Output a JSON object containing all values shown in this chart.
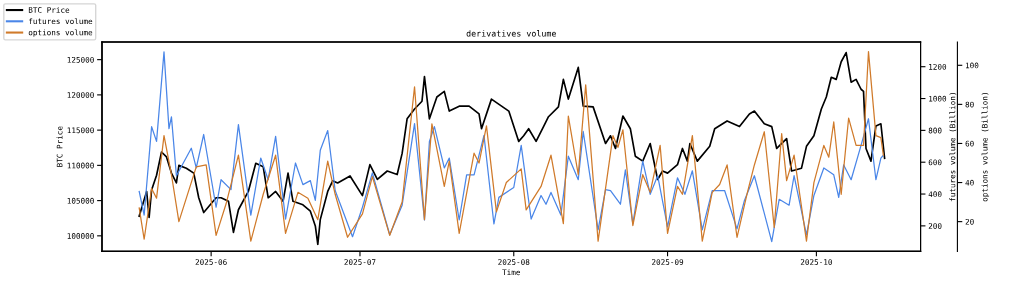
{
  "chart_data": {
    "type": "line",
    "title": "derivatives volume",
    "xlabel": "Time",
    "ylabel": "BTC Price",
    "y2label": "futures volume (Billion)",
    "y3label": "options volume (Billion)",
    "xlim": [
      "2025-05-10",
      "2025-10-22"
    ],
    "xticks": [
      {
        "value": "2025-06-01",
        "label": "2025-06"
      },
      {
        "value": "2025-07-01",
        "label": "2025-07"
      },
      {
        "value": "2025-08-01",
        "label": "2025-08"
      },
      {
        "value": "2025-09-01",
        "label": "2025-09"
      },
      {
        "value": "2025-10-01",
        "label": "2025-10"
      }
    ],
    "ylim": [
      97800,
      127500
    ],
    "yticks": [
      100000,
      105000,
      110000,
      115000,
      120000,
      125000
    ],
    "y2lim": [
      40,
      1355
    ],
    "y2ticks": [
      200,
      400,
      600,
      800,
      1000,
      1200
    ],
    "y3lim": [
      4.8,
      111.9
    ],
    "y3ticks": [
      20,
      40,
      60,
      80,
      100
    ],
    "legend": "top left",
    "series": [
      {
        "name": "BTC Price",
        "color": "#000000",
        "axis": "y",
        "x": [
          "2025-05-17T12:00",
          "2025-05-19",
          "2025-05-19T12:00",
          "2025-05-20",
          "2025-05-21",
          "2025-05-22",
          "2025-05-23",
          "2025-05-24",
          "2025-05-25",
          "2025-05-25T12:00",
          "2025-05-27",
          "2025-05-28T12:00",
          "2025-05-29T12:00",
          "2025-05-30T12:00",
          "2025-06-02",
          "2025-06-03",
          "2025-06-04T12:00",
          "2025-06-05T12:00",
          "2025-06-06T12:00",
          "2025-06-08T12:00",
          "2025-06-10",
          "2025-06-11T12:00",
          "2025-06-12T12:00",
          "2025-06-14",
          "2025-06-15T12:00",
          "2025-06-16T12:00",
          "2025-06-17T12:00",
          "2025-06-19T12:00",
          "2025-06-21",
          "2025-06-22",
          "2025-06-22T12:00",
          "2025-06-23",
          "2025-06-24T12:00",
          "2025-06-25T12:00",
          "2025-06-26T12:00",
          "2025-06-29",
          "2025-07-01T12:00",
          "2025-07-03",
          "2025-07-04T12:00",
          "2025-07-06T12:00",
          "2025-07-08T12:00",
          "2025-07-09T12:00",
          "2025-07-10T12:00",
          "2025-07-12",
          "2025-07-13T12:00",
          "2025-07-14",
          "2025-07-15",
          "2025-07-16T12:00",
          "2025-07-18",
          "2025-07-19",
          "2025-07-21",
          "2025-07-23",
          "2025-07-25",
          "2025-07-25T12:00",
          "2025-07-27T12:00",
          "2025-07-31",
          "2025-08-02",
          "2025-08-03",
          "2025-08-04",
          "2025-08-05T12:00",
          "2025-08-07",
          "2025-08-08",
          "2025-08-10",
          "2025-08-11",
          "2025-08-12",
          "2025-08-14",
          "2025-08-15",
          "2025-08-17",
          "2025-08-19T12:00",
          "2025-08-20T12:00",
          "2025-08-21T12:00",
          "2025-08-23",
          "2025-08-24T12:00",
          "2025-08-25T12:00",
          "2025-08-27",
          "2025-08-28T12:00",
          "2025-08-30",
          "2025-08-31",
          "2025-09-01",
          "2025-09-03",
          "2025-09-04",
          "2025-09-05",
          "2025-09-05T12:00",
          "2025-09-07",
          "2025-09-09T12:00",
          "2025-09-10T12:00",
          "2025-09-13",
          "2025-09-15T12:00",
          "2025-09-17T12:00",
          "2025-09-18T12:00",
          "2025-09-20T12:00",
          "2025-09-22",
          "2025-09-23",
          "2025-09-25",
          "2025-09-26",
          "2025-09-28",
          "2025-09-29",
          "2025-09-30T12:00",
          "2025-10-02",
          "2025-10-03",
          "2025-10-04",
          "2025-10-05",
          "2025-10-06",
          "2025-10-07",
          "2025-10-08",
          "2025-10-09",
          "2025-10-10",
          "2025-10-10T12:00",
          "2025-10-11",
          "2025-10-12",
          "2025-10-13",
          "2025-10-14",
          "2025-10-14T18:00"
        ],
        "values": [
          102800,
          106300,
          102600,
          106500,
          108600,
          111900,
          111200,
          108900,
          107500,
          110000,
          109600,
          108900,
          105400,
          103300,
          105400,
          105400,
          104900,
          100500,
          103700,
          106300,
          110300,
          109800,
          105400,
          106300,
          104900,
          108900,
          104900,
          104400,
          103500,
          101400,
          98800,
          102300,
          106300,
          107800,
          107500,
          108500,
          105700,
          110100,
          108000,
          109200,
          108700,
          111700,
          116600,
          118000,
          119100,
          122600,
          116600,
          119700,
          120500,
          117700,
          118400,
          118400,
          117300,
          115200,
          119400,
          117700,
          113400,
          114200,
          115200,
          113400,
          115500,
          116900,
          118300,
          122200,
          119400,
          123900,
          118400,
          118300,
          113100,
          114200,
          112400,
          117000,
          115200,
          111300,
          110600,
          113100,
          108000,
          109200,
          108900,
          110100,
          112400,
          110600,
          113100,
          110600,
          112700,
          115200,
          116300,
          115500,
          117300,
          117700,
          115900,
          115500,
          112400,
          113800,
          109200,
          109600,
          112700,
          114200,
          118000,
          119700,
          122500,
          122200,
          124700,
          126000,
          121800,
          122200,
          120800,
          120500,
          112400,
          110600,
          115600,
          115900,
          111000
        ]
      },
      {
        "name": "futures volume",
        "color": "#4a86e8",
        "axis": "y2",
        "x": [
          "2025-05-17T12:00",
          "2025-05-18T12:00",
          "2025-05-20",
          "2025-05-21",
          "2025-05-22T12:00",
          "2025-05-23T12:00",
          "2025-05-24",
          "2025-05-25",
          "2025-05-28",
          "2025-05-29",
          "2025-05-30T12:00",
          "2025-06-02",
          "2025-06-03",
          "2025-06-05",
          "2025-06-06T12:00",
          "2025-06-09",
          "2025-06-11",
          "2025-06-12T12:00",
          "2025-06-14",
          "2025-06-16",
          "2025-06-18",
          "2025-06-19T12:00",
          "2025-06-21",
          "2025-06-22",
          "2025-06-23",
          "2025-06-24T12:00",
          "2025-06-26",
          "2025-06-29T12:00",
          "2025-07-01T12:00",
          "2025-07-03T12:00",
          "2025-07-07",
          "2025-07-09T12:00",
          "2025-07-12",
          "2025-07-14",
          "2025-07-15",
          "2025-07-16",
          "2025-07-18",
          "2025-07-19",
          "2025-07-21",
          "2025-07-22T12:00",
          "2025-07-24",
          "2025-07-26",
          "2025-07-28",
          "2025-07-29",
          "2025-08-01",
          "2025-08-02T12:00",
          "2025-08-04T12:00",
          "2025-08-06T12:00",
          "2025-08-07T12:00",
          "2025-08-08T12:00",
          "2025-08-10T12:00",
          "2025-08-12",
          "2025-08-14",
          "2025-08-15",
          "2025-08-18",
          "2025-08-19T12:00",
          "2025-08-20T12:00",
          "2025-08-22T12:00",
          "2025-08-23T12:00",
          "2025-08-25",
          "2025-08-27",
          "2025-08-28T12:00",
          "2025-08-30",
          "2025-09-01",
          "2025-09-03",
          "2025-09-04T12:00",
          "2025-09-06",
          "2025-09-08",
          "2025-09-10",
          "2025-09-12T12:00",
          "2025-09-15",
          "2025-09-16T12:00",
          "2025-09-18T12:00",
          "2025-09-22",
          "2025-09-23T12:00",
          "2025-09-25T12:00",
          "2025-09-26T12:00",
          "2025-09-29",
          "2025-09-30T12:00",
          "2025-10-02T12:00",
          "2025-10-04T12:00",
          "2025-10-05T12:00",
          "2025-10-06T12:00",
          "2025-10-08",
          "2025-10-10",
          "2025-10-11T12:00",
          "2025-10-13",
          "2025-10-14",
          "2025-10-14T12:00"
        ],
        "values": [
          416,
          268,
          823,
          731,
          1293,
          811,
          885,
          515,
          688,
          564,
          774,
          317,
          490,
          428,
          836,
          268,
          626,
          490,
          762,
          243,
          595,
          459,
          484,
          360,
          675,
          799,
          422,
          132,
          317,
          533,
          144,
          330,
          842,
          237,
          731,
          823,
          564,
          626,
          237,
          521,
          521,
          768,
          212,
          379,
          441,
          706,
          243,
          391,
          336,
          410,
          268,
          638,
          490,
          793,
          175,
          428,
          422,
          336,
          552,
          212,
          607,
          398,
          515,
          194,
          502,
          398,
          546,
          175,
          422,
          422,
          181,
          360,
          515,
          101,
          367,
          330,
          515,
          144,
          391,
          564,
          521,
          379,
          583,
          490,
          706,
          873,
          490,
          626,
          644
        ]
      },
      {
        "name": "options volume",
        "color": "#d07a2a",
        "axis": "y3",
        "x": [
          "2025-05-17T12:00",
          "2025-05-18T12:00",
          "2025-05-20",
          "2025-05-21",
          "2025-05-22T12:00",
          "2025-05-24",
          "2025-05-25T12:00",
          "2025-05-27",
          "2025-05-29",
          "2025-05-31",
          "2025-06-02",
          "2025-06-04",
          "2025-06-06T12:00",
          "2025-06-09",
          "2025-06-11T12:00",
          "2025-06-14",
          "2025-06-16",
          "2025-06-18T12:00",
          "2025-06-20T12:00",
          "2025-06-22T12:00",
          "2025-06-24T12:00",
          "2025-06-26",
          "2025-06-28T12:00",
          "2025-07-01T12:00",
          "2025-07-03T12:00",
          "2025-07-07",
          "2025-07-09T12:00",
          "2025-07-12",
          "2025-07-14",
          "2025-07-15T12:00",
          "2025-07-18",
          "2025-07-19",
          "2025-07-21",
          "2025-07-24",
          "2025-07-25",
          "2025-07-26T12:00",
          "2025-07-28T12:00",
          "2025-07-30T12:00",
          "2025-08-02T12:00",
          "2025-08-03T12:00",
          "2025-08-06T12:00",
          "2025-08-08T12:00",
          "2025-08-11",
          "2025-08-12",
          "2025-08-14",
          "2025-08-15T12:00",
          "2025-08-18",
          "2025-08-21",
          "2025-08-22",
          "2025-08-23",
          "2025-08-25",
          "2025-08-27",
          "2025-08-28T12:00",
          "2025-08-30T12:00",
          "2025-09-01",
          "2025-09-03",
          "2025-09-04",
          "2025-09-06",
          "2025-09-08",
          "2025-09-10",
          "2025-09-11T12:00",
          "2025-09-13",
          "2025-09-15",
          "2025-09-17",
          "2025-09-18T12:00",
          "2025-09-20T12:00",
          "2025-09-22T12:00",
          "2025-09-24",
          "2025-09-25",
          "2025-09-26T12:00",
          "2025-09-29",
          "2025-09-30T12:00",
          "2025-10-02T12:00",
          "2025-10-03T12:00",
          "2025-10-04T12:00",
          "2025-10-06",
          "2025-10-07T12:00",
          "2025-10-09",
          "2025-10-10T12:00",
          "2025-10-11T12:00",
          "2025-10-13",
          "2025-10-14",
          "2025-10-14T12:00"
        ],
        "values": [
          27,
          11,
          37,
          32,
          64,
          44,
          20,
          32,
          48,
          49,
          13,
          29,
          54,
          10,
          34,
          54,
          14,
          35,
          32,
          21,
          51,
          34,
          12,
          24,
          43,
          13,
          30,
          89,
          21,
          70,
          38,
          51,
          14,
          55,
          50,
          69,
          25,
          40,
          47,
          26,
          38,
          54,
          19,
          74,
          44,
          90,
          10,
          64,
          58,
          67,
          18,
          44,
          35,
          59,
          14,
          38,
          34,
          64,
          10,
          35,
          39,
          49,
          12,
          34,
          49,
          66,
          17,
          65,
          41,
          54,
          10,
          40,
          59,
          53,
          71,
          34,
          73,
          59,
          59,
          107,
          64,
          63,
          54
        ]
      }
    ]
  }
}
